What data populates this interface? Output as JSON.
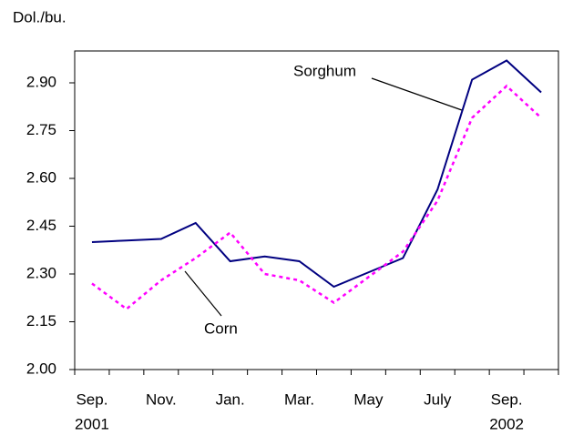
{
  "chart_data": {
    "type": "line",
    "y_axis_label": "Dol./bu.",
    "categories": [
      "Sep.",
      null,
      "Nov.",
      null,
      "Jan.",
      null,
      "Mar.",
      null,
      "May",
      null,
      "July",
      null,
      "Sep.",
      null
    ],
    "category_years": [
      "2001",
      null,
      null,
      null,
      null,
      null,
      null,
      null,
      null,
      null,
      null,
      null,
      "2002",
      null
    ],
    "series": [
      {
        "name": "Sorghum",
        "color": "#000080",
        "dash": false,
        "values": [
          2.4,
          2.405,
          2.41,
          2.46,
          2.34,
          2.355,
          2.34,
          2.26,
          2.305,
          2.35,
          2.565,
          2.91,
          2.97,
          2.87
        ]
      },
      {
        "name": "Corn",
        "color": "#ff00ff",
        "dash": true,
        "values": [
          2.27,
          2.19,
          2.28,
          2.35,
          2.43,
          2.3,
          2.28,
          2.21,
          2.29,
          2.37,
          2.53,
          2.79,
          2.89,
          2.79
        ]
      }
    ],
    "ylim": [
      2.0,
      3.0
    ],
    "yticks": [
      {
        "value": 2.0,
        "label": "2.00"
      },
      2.15,
      {
        "value": 2.3,
        "label": "2.30"
      },
      2.45,
      {
        "value": 2.6,
        "label": "2.60"
      },
      2.75,
      {
        "value": 2.9,
        "label": "2.90"
      }
    ],
    "grid": false
  }
}
